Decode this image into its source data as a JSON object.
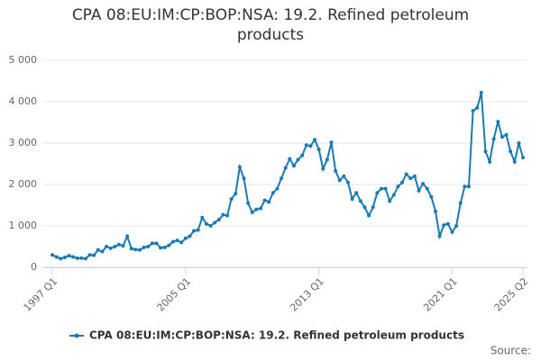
{
  "chart_data": {
    "type": "line",
    "title": "CPA 08:EU:IM:CP:BOP:NSA: 19.2. Refined petroleum products",
    "categories": [
      "1997 Q1",
      null,
      null,
      null,
      null,
      null,
      null,
      null,
      null,
      null,
      null,
      null,
      null,
      null,
      null,
      null,
      null,
      null,
      null,
      null,
      null,
      null,
      null,
      null,
      null,
      null,
      null,
      null,
      null,
      null,
      null,
      null,
      "2005 Q1",
      null,
      null,
      null,
      null,
      null,
      null,
      null,
      null,
      null,
      null,
      null,
      null,
      null,
      null,
      null,
      null,
      null,
      null,
      null,
      null,
      null,
      null,
      null,
      null,
      null,
      null,
      null,
      null,
      null,
      null,
      null,
      "2013 Q1",
      null,
      null,
      null,
      null,
      null,
      null,
      null,
      null,
      null,
      null,
      null,
      null,
      null,
      null,
      null,
      null,
      null,
      null,
      null,
      null,
      null,
      null,
      null,
      null,
      null,
      null,
      null,
      null,
      null,
      null,
      null,
      "2021 Q1",
      null,
      null,
      null,
      null,
      null,
      null,
      null,
      null,
      null,
      null,
      null,
      null,
      null,
      null,
      null,
      null,
      "2025 Q2"
    ],
    "series": [
      {
        "name": "CPA 08:EU:IM:CP:BOP:NSA: 19.2. Refined petroleum products",
        "color": "#1a7ab5",
        "values": [
          300,
          250,
          210,
          240,
          280,
          250,
          220,
          220,
          210,
          300,
          290,
          420,
          380,
          500,
          460,
          500,
          550,
          520,
          750,
          450,
          430,
          420,
          480,
          500,
          580,
          580,
          470,
          480,
          530,
          620,
          650,
          600,
          700,
          750,
          880,
          900,
          1200,
          1050,
          1000,
          1080,
          1150,
          1270,
          1250,
          1650,
          1780,
          2420,
          2150,
          1550,
          1330,
          1400,
          1420,
          1620,
          1580,
          1800,
          1900,
          2150,
          2400,
          2620,
          2450,
          2600,
          2700,
          2950,
          2930,
          3080,
          2850,
          2380,
          2600,
          3020,
          2330,
          2100,
          2200,
          2050,
          1650,
          1800,
          1600,
          1450,
          1250,
          1450,
          1800,
          1900,
          1900,
          1600,
          1750,
          1950,
          2050,
          2250,
          2150,
          2200,
          1850,
          2020,
          1900,
          1700,
          1350,
          750,
          1020,
          1050,
          850,
          1000,
          1550,
          1950,
          1950,
          3780,
          3850,
          4220,
          2800,
          2550,
          3100,
          3520,
          3150,
          3200,
          2800,
          2550,
          3000,
          2650
        ]
      }
    ],
    "ylim": [
      0,
      5000
    ],
    "yticks": [
      0,
      {
        "value": 1000,
        "label": "1 000"
      },
      {
        "value": 2000,
        "label": "2 000"
      },
      {
        "value": 3000,
        "label": "3 000"
      },
      {
        "value": 4000,
        "label": "4 000"
      },
      {
        "value": 5000,
        "label": "5 000"
      }
    ],
    "grid": true,
    "source": "Source:"
  }
}
